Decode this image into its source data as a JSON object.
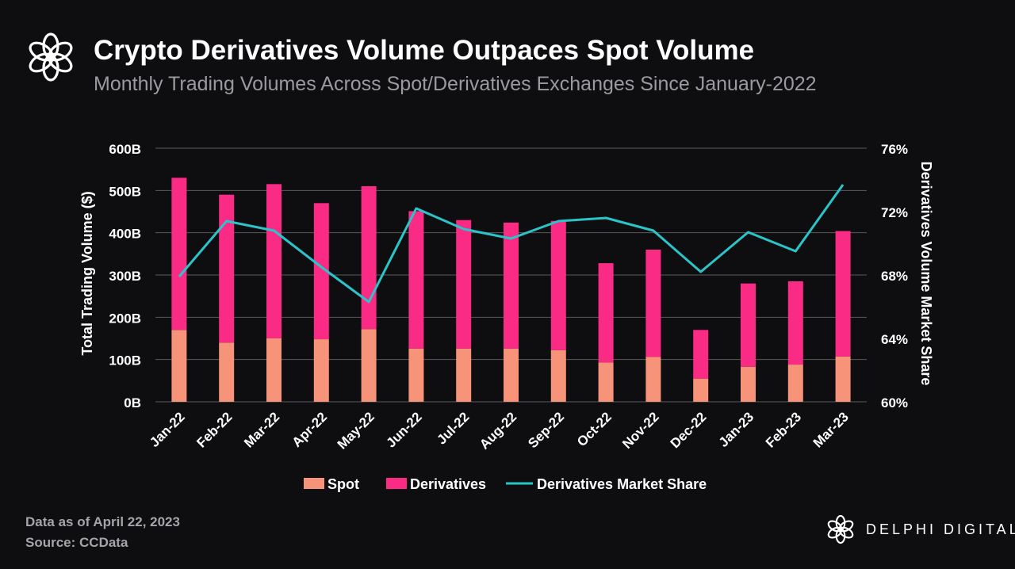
{
  "header": {
    "title": "Crypto Derivatives Volume Outpaces Spot Volume",
    "subtitle": "Monthly Trading Volumes Across Spot/Derivatives Exchanges Since January-2022"
  },
  "footer": {
    "note": "Data as of April 22, 2023",
    "source": "Source: CCData"
  },
  "brand": {
    "name": "DELPHI DIGITAL",
    "icon": "delphi-flower-icon"
  },
  "colors": {
    "spot": "#f79378",
    "derivatives": "#fa2b84",
    "share_line": "#2bc4c8",
    "grid": "#5a5a5e",
    "background": "#0e0e10"
  },
  "chart_data": {
    "type": "bar",
    "stacked": true,
    "categories": [
      "Jan-22",
      "Feb-22",
      "Mar-22",
      "Apr-22",
      "May-22",
      "Jun-22",
      "Jul-22",
      "Aug-22",
      "Sep-22",
      "Oct-22",
      "Nov-22",
      "Dec-22",
      "Jan-23",
      "Feb-23",
      "Mar-23"
    ],
    "series": [
      {
        "name": "Spot",
        "type": "bar",
        "axis": "left",
        "values": [
          170,
          140,
          150,
          148,
          172,
          126,
          126,
          126,
          122,
          93,
          106,
          55,
          83,
          88,
          107
        ]
      },
      {
        "name": "Derivatives",
        "type": "bar",
        "axis": "left",
        "values": [
          360,
          350,
          365,
          322,
          338,
          325,
          304,
          298,
          306,
          235,
          254,
          115,
          197,
          197,
          297
        ]
      },
      {
        "name": "Derivatives Market Share",
        "type": "line",
        "axis": "right",
        "values": [
          67.9,
          71.4,
          70.8,
          68.5,
          66.3,
          72.2,
          70.9,
          70.3,
          71.4,
          71.6,
          70.8,
          68.2,
          70.7,
          69.5,
          73.7
        ]
      }
    ],
    "ylabel": "Total Trading Volume ($)",
    "y2label": "Derivatives Volume Market Share",
    "ylim": [
      0,
      600
    ],
    "y2lim": [
      60,
      76
    ],
    "yticks": [
      "0B",
      "100B",
      "200B",
      "300B",
      "400B",
      "500B",
      "600B"
    ],
    "yticks_values": [
      0,
      100,
      200,
      300,
      400,
      500,
      600
    ],
    "y2ticks": [
      "60%",
      "64%",
      "68%",
      "72%",
      "76%"
    ],
    "y2ticks_values": [
      60,
      64,
      68,
      72,
      76
    ],
    "legend": [
      "Spot",
      "Derivatives",
      "Derivatives Market Share"
    ],
    "legend_position": "bottom",
    "grid": true
  }
}
